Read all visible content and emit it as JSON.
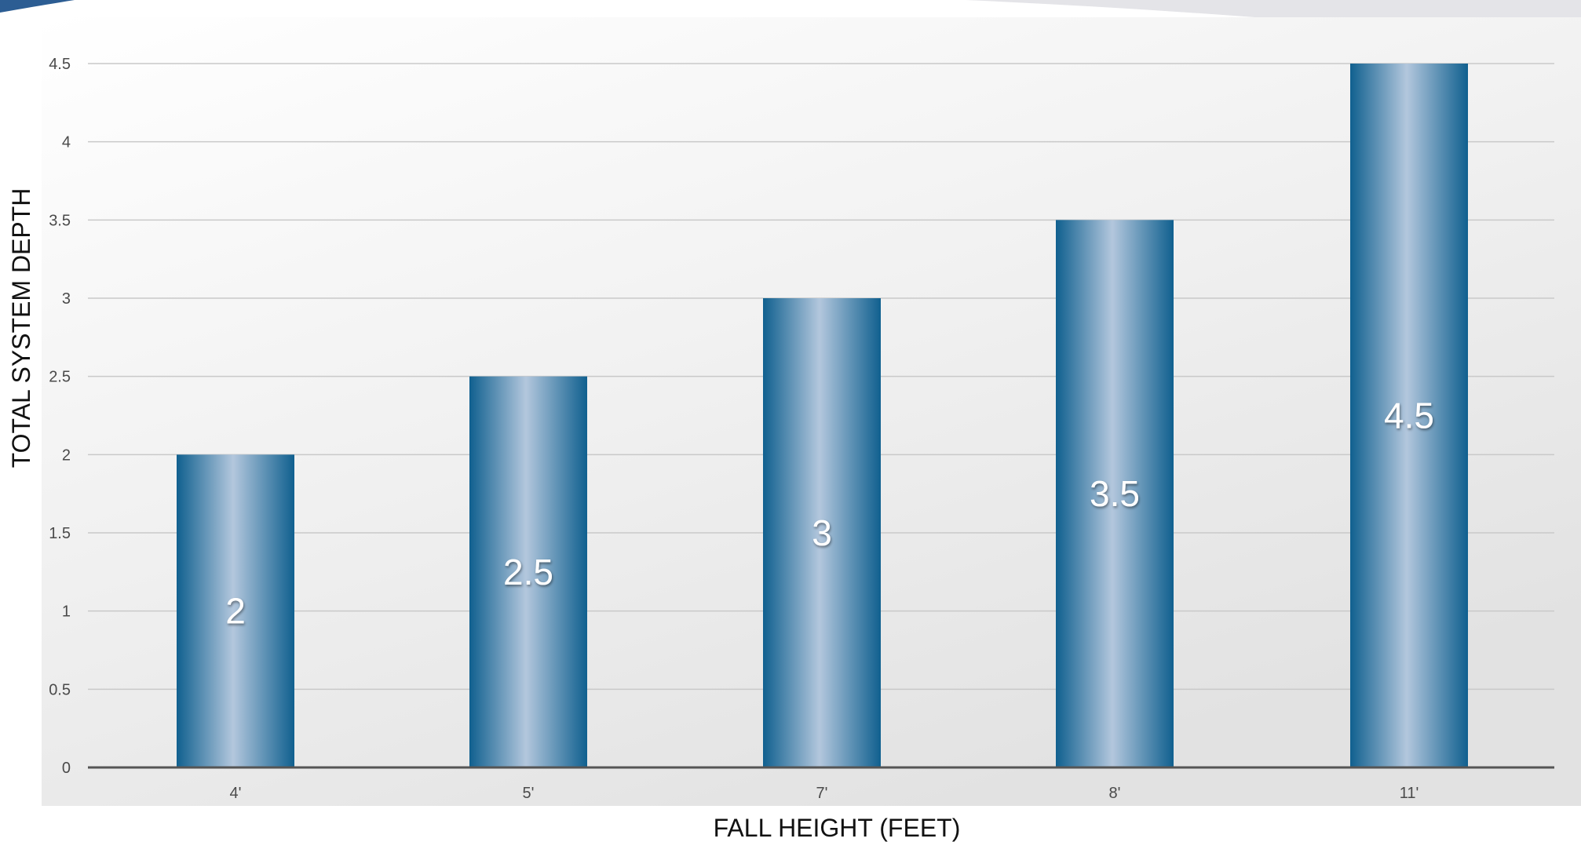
{
  "chart_data": {
    "type": "bar",
    "categories": [
      "4'",
      "5'",
      "7'",
      "8'",
      "11'"
    ],
    "values": [
      2,
      2.5,
      3,
      3.5,
      4.5
    ],
    "data_labels": [
      "2",
      "2.5",
      "3",
      "3.5",
      "4.5"
    ],
    "title": "",
    "xlabel": "FALL HEIGHT (FEET)",
    "ylabel": "TOTAL SYSTEM DEPTH",
    "ylim": [
      0,
      4.5
    ],
    "y_ticks": [
      "0",
      "0.5",
      "1",
      "1.5",
      "2",
      "2.5",
      "3",
      "3.5",
      "4",
      "4.5"
    ],
    "grid": true,
    "legend": "none",
    "colors": {
      "bar_dark": "#10608f",
      "bar_light": "#b3c7dd",
      "gridline": "#c9c9c9",
      "baseline": "#555555",
      "banner": "#2c5d93"
    }
  }
}
